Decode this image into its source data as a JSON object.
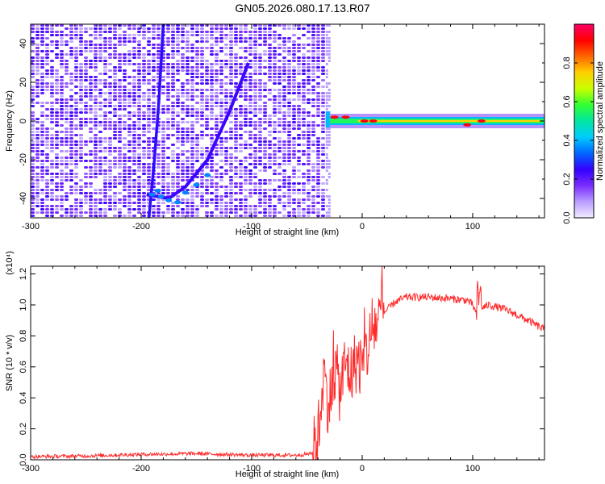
{
  "title": "GN05.2026.080.17.13.R07",
  "chart_data": [
    {
      "type": "heatmap",
      "xlabel": "Height of straight line (km)",
      "ylabel": "Frequency (Hz)",
      "xlim": [
        -300,
        165
      ],
      "ylim": [
        -50,
        50
      ],
      "x_ticks": [
        -300,
        -200,
        -100,
        0,
        100
      ],
      "y_ticks": [
        -40,
        -20,
        0,
        20,
        40
      ],
      "colorbar": {
        "label": "Normalized spectral amplitude",
        "range": [
          0,
          1
        ],
        "ticks": [
          "0.0",
          "0.2",
          "0.4",
          "0.6",
          "0.8"
        ],
        "colors": [
          "#f2ecff",
          "#b99cff",
          "#7a2cff",
          "#3300ff",
          "#0066ff",
          "#00ccff",
          "#00e6a0",
          "#33ff33",
          "#c8ff00",
          "#ffd000",
          "#ff6600",
          "#ff0000",
          "#ff0066"
        ]
      },
      "features": [
        {
          "name": "near-vertical track",
          "points": [
            [
              -193,
              -50
            ],
            [
              -188,
              -20
            ],
            [
              -184,
              10
            ],
            [
              -180,
              50
            ]
          ]
        },
        {
          "name": "curved track",
          "points": [
            [
              -195,
              -38
            ],
            [
              -175,
              -40
            ],
            [
              -160,
              -34
            ],
            [
              -140,
              -20
            ],
            [
              -120,
              5
            ],
            [
              -103,
              30
            ]
          ]
        },
        {
          "name": "zero-frequency band",
          "x_range": [
            -33,
            165
          ],
          "frequency": 0
        }
      ]
    },
    {
      "type": "line",
      "xlabel": "Height of straight line (km)",
      "ylabel": "SNR (10 * v/v)",
      "y_multiplier": "(x10⁴)",
      "xlim": [
        -300,
        165
      ],
      "ylim": [
        0,
        1.25
      ],
      "x_ticks": [
        -300,
        -200,
        -100,
        0,
        100
      ],
      "y_ticks": [
        "0.0",
        "0.2",
        "0.4",
        "0.6",
        "0.8",
        "1.0",
        "1.2"
      ],
      "color": "#ff2a2a",
      "series": [
        {
          "x": [
            -300,
            -250,
            -200,
            -150,
            -100,
            -60,
            -45,
            -40,
            -35,
            -30,
            -25,
            -20,
            -15,
            -10,
            -5,
            0,
            5,
            10,
            20,
            30,
            40,
            60,
            80,
            95,
            100,
            103,
            105,
            108,
            115,
            130,
            150,
            165
          ],
          "y": [
            0.02,
            0.025,
            0.035,
            0.04,
            0.03,
            0.03,
            0.04,
            0.15,
            0.55,
            0.35,
            0.6,
            0.45,
            0.62,
            0.55,
            0.65,
            0.6,
            0.72,
            0.85,
            0.95,
            1.02,
            1.05,
            1.05,
            1.04,
            1.03,
            1.0,
            0.95,
            1.12,
            0.98,
            1.0,
            0.97,
            0.9,
            0.84
          ]
        }
      ]
    }
  ]
}
